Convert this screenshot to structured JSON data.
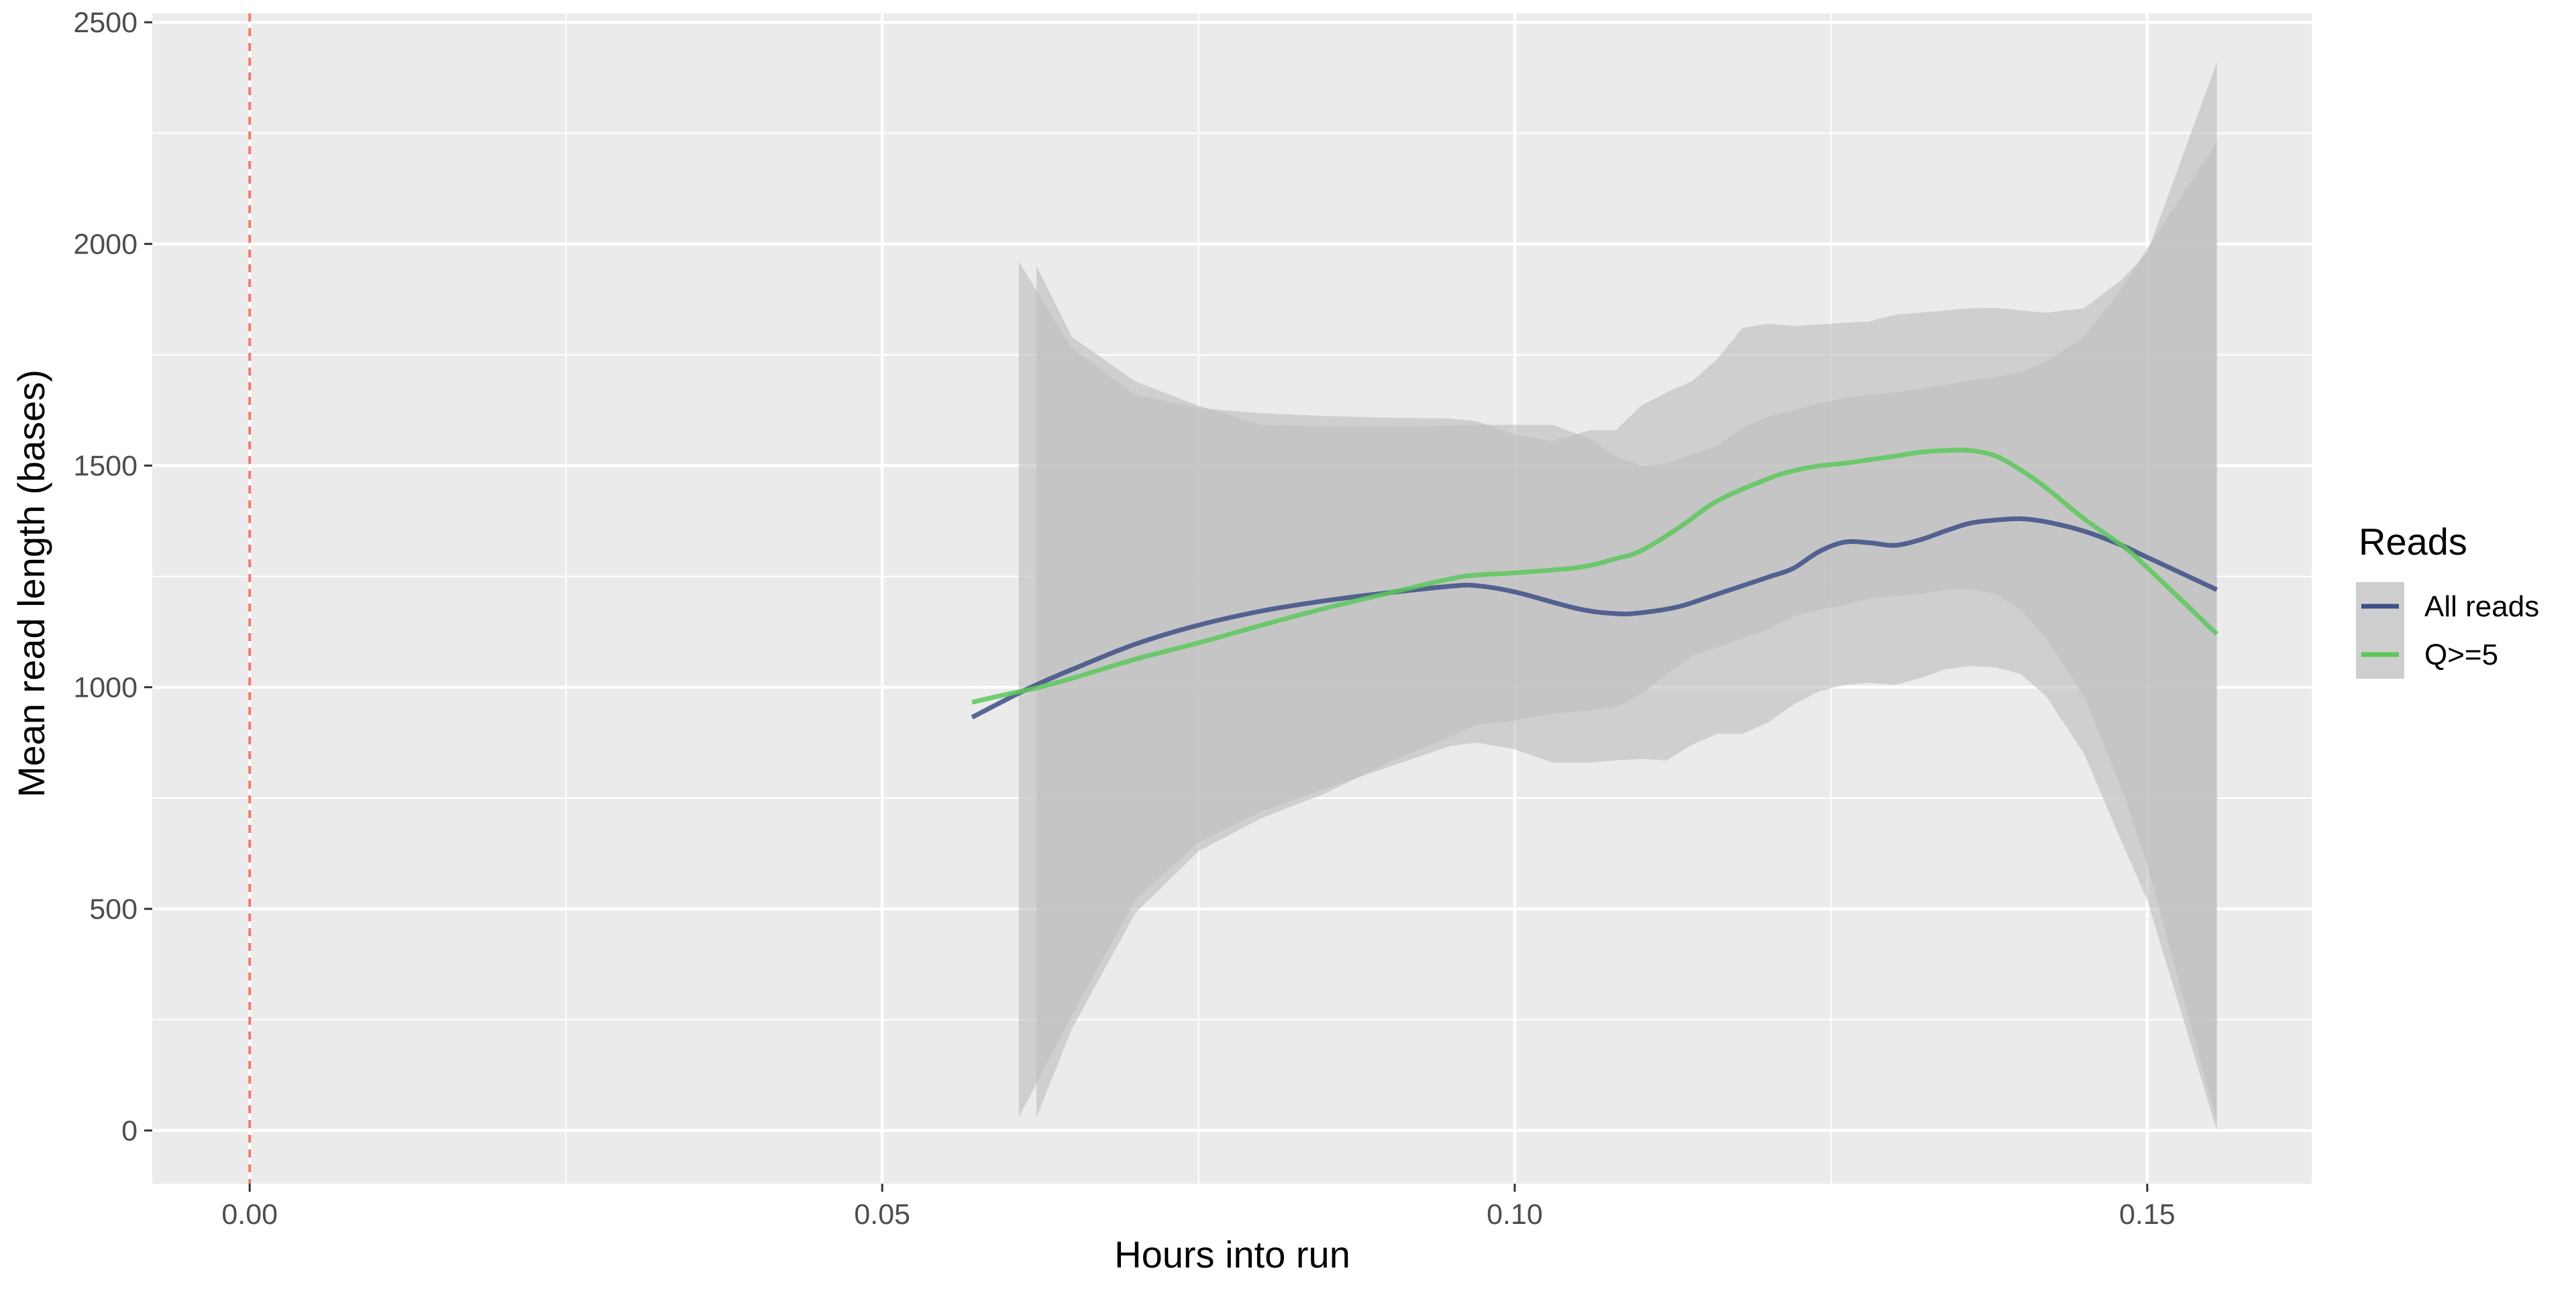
{
  "chart_data": {
    "type": "line",
    "title": "",
    "xlabel": "Hours into run",
    "ylabel": "Mean read length (bases)",
    "xlim": [
      -0.0077,
      0.163
    ],
    "ylim": [
      -120,
      2520
    ],
    "x_ticks": [
      0.0,
      0.05,
      0.1,
      0.15
    ],
    "x_tick_labels": [
      "0.00",
      "0.05",
      "0.10",
      "0.15"
    ],
    "y_ticks": [
      0,
      500,
      1000,
      1500,
      2000,
      2500
    ],
    "y_tick_labels": [
      "0",
      "500",
      "1000",
      "1500",
      "2000",
      "2500"
    ],
    "grid": true,
    "legend": {
      "title": "Reads",
      "position": "right"
    },
    "vline": {
      "x": 0.0,
      "color": "#f8766d",
      "style": "dashed"
    },
    "colors": {
      "panel": "#ebebeb",
      "grid": "#ffffff",
      "ribbon": "#bebebe"
    },
    "series": [
      {
        "name": "All reads",
        "color": "#3d4f85",
        "x": [
          0.0571,
          0.06,
          0.062,
          0.065,
          0.07,
          0.075,
          0.08,
          0.085,
          0.09,
          0.095,
          0.097,
          0.1,
          0.105,
          0.108,
          0.11,
          0.113,
          0.116,
          0.12,
          0.122,
          0.124,
          0.126,
          0.128,
          0.13,
          0.132,
          0.134,
          0.136,
          0.138,
          0.14,
          0.142,
          0.145,
          0.148,
          0.15,
          0.1555
        ],
        "y": [
          932,
          975,
          1003,
          1040,
          1097,
          1140,
          1172,
          1195,
          1213,
          1228,
          1229,
          1215,
          1177,
          1166,
          1168,
          1182,
          1210,
          1248,
          1268,
          1305,
          1327,
          1326,
          1320,
          1332,
          1352,
          1370,
          1377,
          1380,
          1373,
          1352,
          1320,
          1293,
          1220
        ]
      },
      {
        "name": "Q>=5",
        "color": "#5ac85a",
        "x": [
          0.0571,
          0.06,
          0.062,
          0.065,
          0.07,
          0.075,
          0.08,
          0.085,
          0.09,
          0.095,
          0.097,
          0.1,
          0.105,
          0.108,
          0.11,
          0.113,
          0.116,
          0.12,
          0.122,
          0.124,
          0.126,
          0.128,
          0.13,
          0.132,
          0.134,
          0.136,
          0.138,
          0.14,
          0.142,
          0.145,
          0.148,
          0.15,
          0.1555
        ],
        "y": [
          966,
          985,
          997,
          1020,
          1063,
          1100,
          1140,
          1178,
          1212,
          1245,
          1253,
          1258,
          1270,
          1290,
          1308,
          1360,
          1420,
          1470,
          1488,
          1499,
          1505,
          1513,
          1521,
          1530,
          1534,
          1534,
          1522,
          1490,
          1450,
          1380,
          1320,
          1270,
          1120
        ]
      }
    ],
    "ribbons": [
      {
        "x": [
          0.0608,
          0.065,
          0.07,
          0.075,
          0.08,
          0.085,
          0.09,
          0.095,
          0.097,
          0.1,
          0.103,
          0.106,
          0.108,
          0.11,
          0.112,
          0.114,
          0.116,
          0.118,
          0.12,
          0.122,
          0.124,
          0.126,
          0.128,
          0.13,
          0.132,
          0.134,
          0.136,
          0.138,
          0.14,
          0.142,
          0.145,
          0.148,
          0.15,
          0.1555
        ],
        "ymin": [
          30,
          260,
          520,
          650,
          720,
          770,
          820,
          868,
          875,
          860,
          830,
          830,
          835,
          838,
          835,
          870,
          895,
          895,
          920,
          960,
          990,
          1005,
          1010,
          1005,
          1020,
          1040,
          1048,
          1045,
          1030,
          980,
          850,
          650,
          520,
          0
        ],
        "ymax": [
          1960,
          1765,
          1660,
          1630,
          1618,
          1612,
          1608,
          1606,
          1600,
          1570,
          1555,
          1580,
          1580,
          1635,
          1665,
          1690,
          1740,
          1810,
          1820,
          1815,
          1818,
          1822,
          1825,
          1840,
          1845,
          1850,
          1855,
          1856,
          1850,
          1845,
          1855,
          1920,
          1980,
          2410
        ]
      },
      {
        "x": [
          0.0622,
          0.065,
          0.07,
          0.075,
          0.08,
          0.085,
          0.09,
          0.095,
          0.097,
          0.1,
          0.103,
          0.106,
          0.108,
          0.11,
          0.112,
          0.114,
          0.116,
          0.118,
          0.12,
          0.122,
          0.124,
          0.126,
          0.128,
          0.13,
          0.132,
          0.134,
          0.136,
          0.138,
          0.14,
          0.142,
          0.145,
          0.148,
          0.15,
          0.1555
        ],
        "ymin": [
          30,
          230,
          490,
          630,
          705,
          760,
          830,
          890,
          915,
          925,
          940,
          948,
          955,
          985,
          1030,
          1070,
          1090,
          1110,
          1130,
          1160,
          1175,
          1185,
          1200,
          1205,
          1210,
          1220,
          1222,
          1210,
          1175,
          1110,
          980,
          770,
          600,
          20
        ],
        "ymax": [
          1950,
          1790,
          1690,
          1635,
          1592,
          1588,
          1588,
          1590,
          1592,
          1592,
          1592,
          1560,
          1520,
          1500,
          1505,
          1525,
          1545,
          1585,
          1610,
          1625,
          1640,
          1652,
          1660,
          1665,
          1672,
          1682,
          1692,
          1700,
          1710,
          1735,
          1790,
          1900,
          1990,
          2230
        ]
      }
    ]
  }
}
